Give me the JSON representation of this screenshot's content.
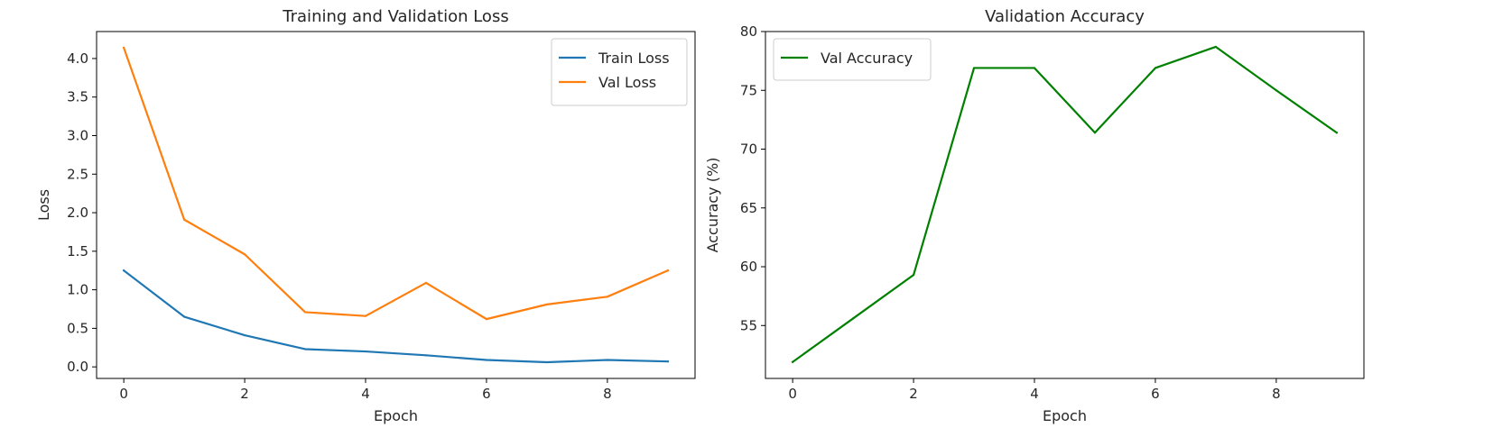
{
  "chart_data": [
    {
      "type": "line",
      "title": "Training and Validation Loss",
      "xlabel": "Epoch",
      "ylabel": "Loss",
      "xlim": [
        -0.45,
        9.45
      ],
      "ylim": [
        -0.15,
        4.35
      ],
      "xticks": [
        0,
        2,
        4,
        6,
        8
      ],
      "yticks": [
        0.0,
        0.5,
        1.0,
        1.5,
        2.0,
        2.5,
        3.0,
        3.5,
        4.0
      ],
      "ytick_labels": [
        "0.0",
        "0.5",
        "1.0",
        "1.5",
        "2.0",
        "2.5",
        "3.0",
        "3.5",
        "4.0"
      ],
      "grid": false,
      "legend_position": "upper right",
      "x": [
        0,
        1,
        2,
        3,
        4,
        5,
        6,
        7,
        8,
        9
      ],
      "series": [
        {
          "name": "Train Loss",
          "color": "#1f77b4",
          "values": [
            1.25,
            0.65,
            0.41,
            0.23,
            0.2,
            0.15,
            0.09,
            0.06,
            0.09,
            0.07
          ]
        },
        {
          "name": "Val Loss",
          "color": "#ff7f0e",
          "values": [
            4.14,
            1.91,
            1.46,
            0.71,
            0.66,
            1.09,
            0.62,
            0.81,
            0.91,
            1.25
          ]
        }
      ]
    },
    {
      "type": "line",
      "title": "Validation Accuracy",
      "xlabel": "Epoch",
      "ylabel": "Accuracy (%)",
      "xlim": [
        -0.45,
        9.45
      ],
      "ylim": [
        50.5,
        80.0
      ],
      "xticks": [
        0,
        2,
        4,
        6,
        8
      ],
      "yticks": [
        55,
        60,
        65,
        70,
        75,
        80
      ],
      "ytick_labels": [
        "55",
        "60",
        "65",
        "70",
        "75",
        "80"
      ],
      "grid": false,
      "legend_position": "upper left",
      "x": [
        0,
        1,
        2,
        3,
        4,
        5,
        6,
        7,
        8,
        9
      ],
      "series": [
        {
          "name": "Val Accuracy",
          "color": "#008000",
          "values": [
            51.9,
            55.6,
            59.3,
            76.9,
            76.9,
            71.4,
            76.9,
            78.7,
            75.0,
            71.4
          ]
        }
      ]
    }
  ]
}
